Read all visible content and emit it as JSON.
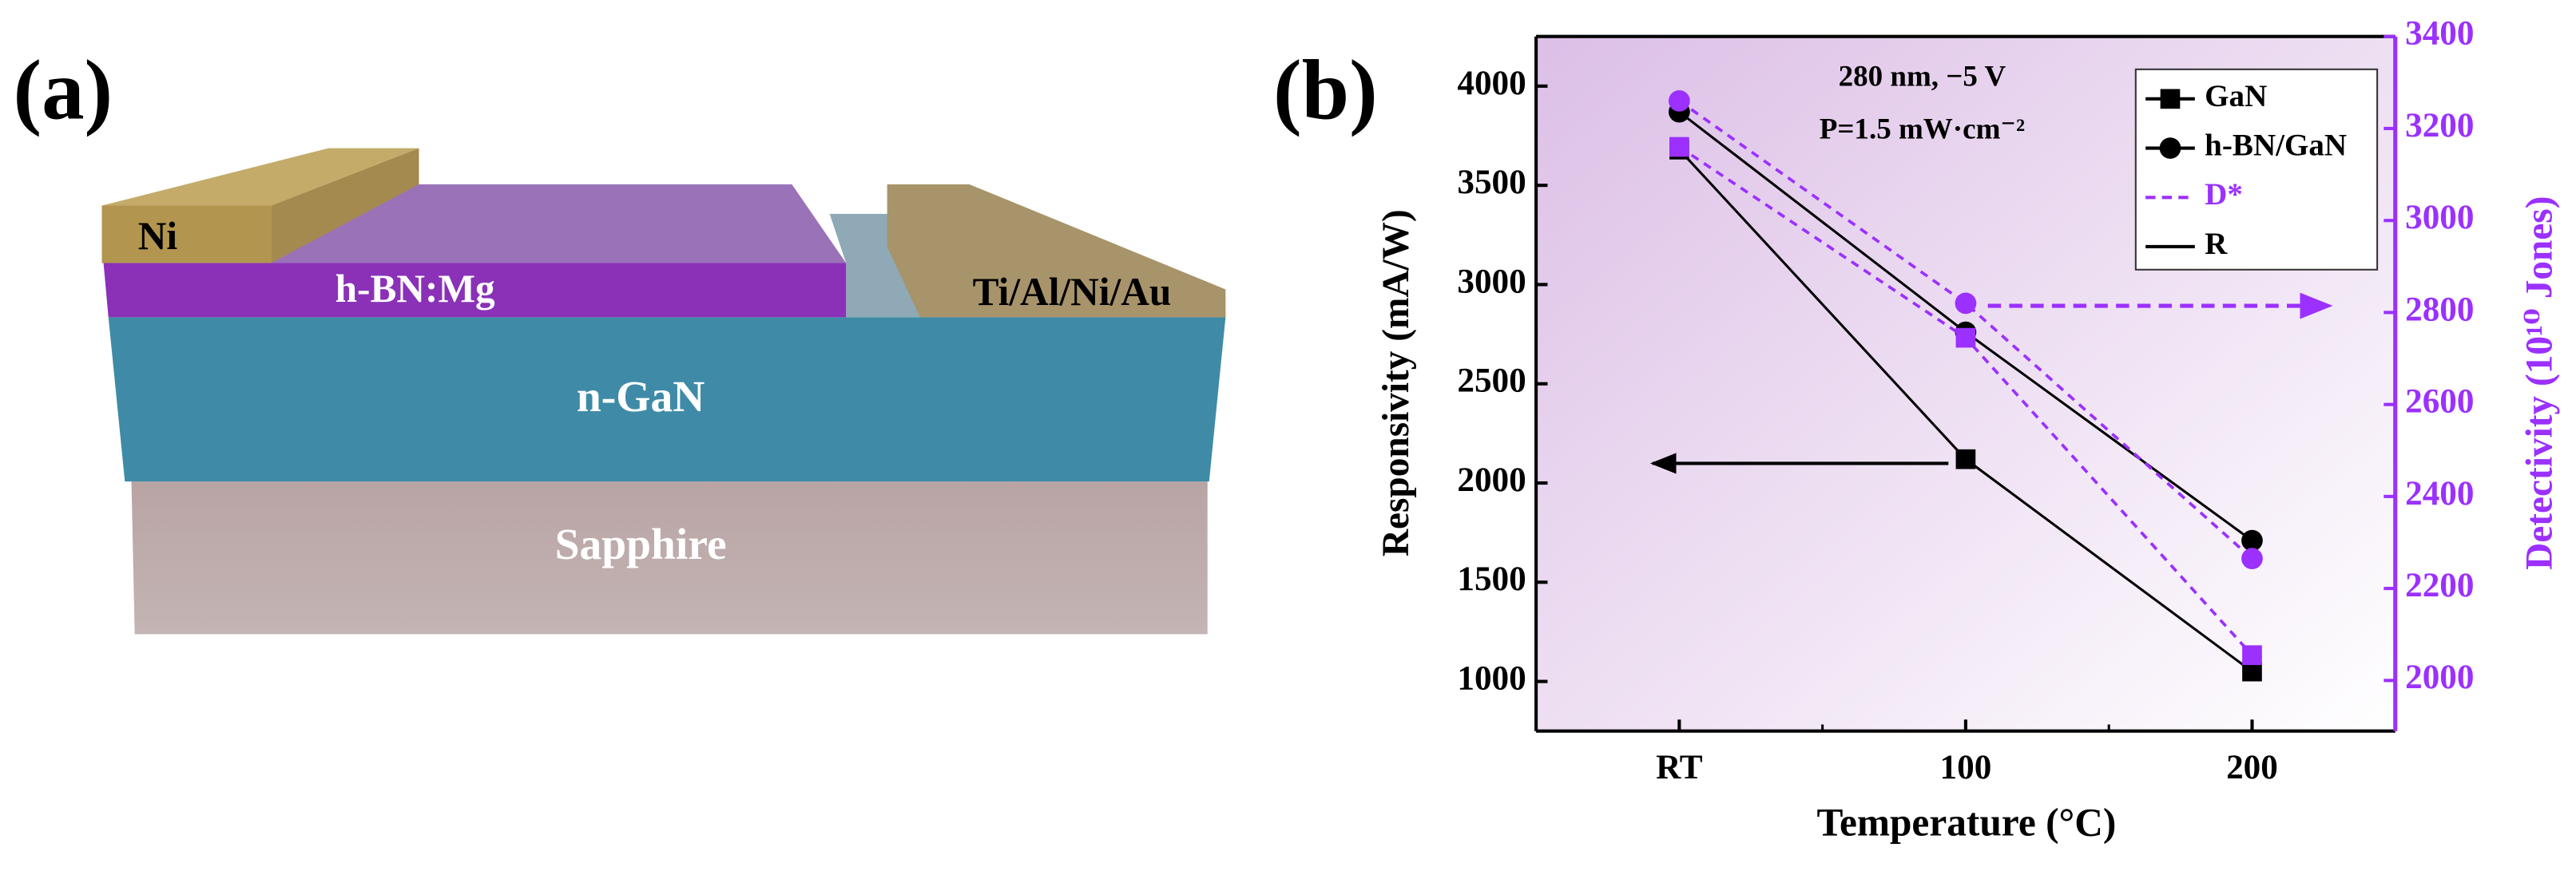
{
  "panel_a": {
    "label": "(a)",
    "layers": {
      "contact_left": "Ni",
      "p_layer": "h-BN:Mg",
      "contact_right": "Ti/Al/Ni/Au",
      "n_layer": "n-GaN",
      "substrate": "Sapphire"
    }
  },
  "chart_data": {
    "type": "line",
    "panel_label": "(b)",
    "annotations": [
      "280 nm, −5 V",
      "P=1.5 mW·cm⁻²"
    ],
    "x_label": "Temperature (°C)",
    "y_label": "Responsivity (mA/W)",
    "y2_label": "Detectivity (10¹⁰ Jones)",
    "categories": [
      "RT",
      "100",
      "200"
    ],
    "ylim": [
      750,
      4250
    ],
    "yticks": [
      1000,
      1500,
      2000,
      2500,
      3000,
      3500,
      4000
    ],
    "y2lim": [
      1890,
      3400
    ],
    "y2ticks": [
      2000,
      2200,
      2400,
      2600,
      2800,
      3000,
      3200,
      3400
    ],
    "legend": [
      {
        "label": "GaN",
        "marker": "square",
        "line": "solid",
        "color": "#000000"
      },
      {
        "label": "h-BN/GaN",
        "marker": "circle",
        "line": "solid",
        "color": "#000000"
      },
      {
        "label": "D*",
        "marker": "none",
        "line": "dashed",
        "color": "#9b30ff"
      },
      {
        "label": "R",
        "marker": "none",
        "line": "solid",
        "color": "#000000"
      }
    ],
    "series": [
      {
        "color": "#000000",
        "marker": "square",
        "line": "solid",
        "axis": "y",
        "values": [
          3680,
          2120,
          1050
        ]
      },
      {
        "color": "#000000",
        "marker": "circle",
        "line": "solid",
        "axis": "y",
        "values": [
          3870,
          2760,
          1710
        ]
      },
      {
        "color": "#9b30ff",
        "marker": "square",
        "line": "dashed",
        "axis": "y2",
        "values": [
          3160,
          2745,
          2055
        ]
      },
      {
        "color": "#9b30ff",
        "marker": "circle",
        "line": "dashed",
        "axis": "y2",
        "values": [
          3260,
          2820,
          2265
        ]
      }
    ]
  }
}
